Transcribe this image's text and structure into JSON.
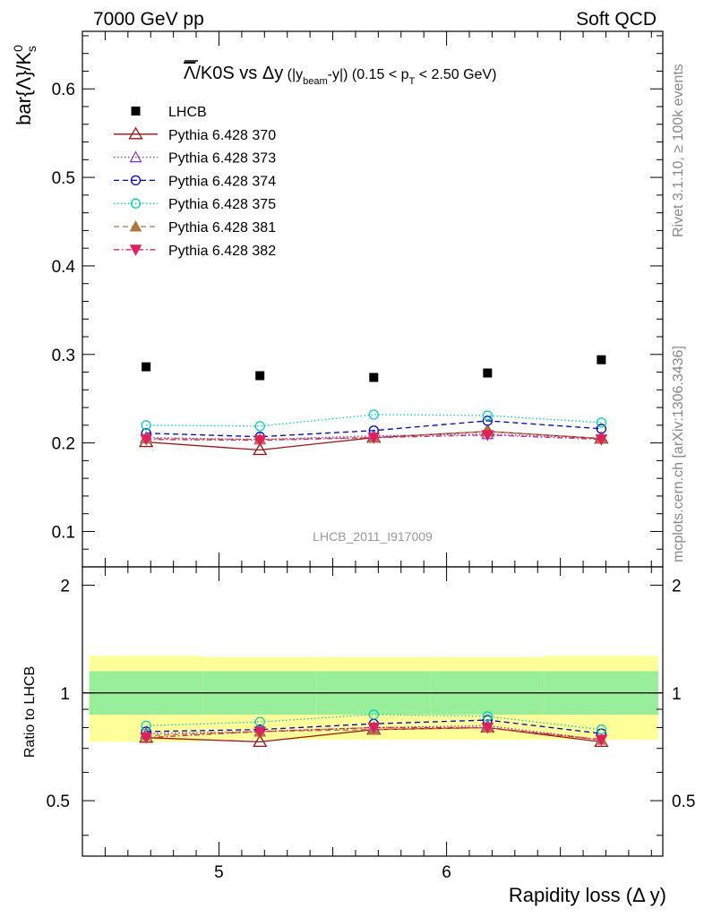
{
  "header": {
    "left": "7000 GeV pp",
    "right": "Soft QCD"
  },
  "side_labels": {
    "top": "Rivet 3.1.10, ≥ 100k events",
    "bottom": "mcplots.cern.ch [arXiv:1306.3436]"
  },
  "watermark": "LHCB_2011_I917009",
  "chart_data": {
    "type": "scatter",
    "title_main": "Λ/K0S vs Δy",
    "title_range": "(|y_beam-y|) (0.15 < p_T < 2.50 GeV)",
    "ylabel": "bar{Λ}/K⁰s",
    "xlabel": "Rapidity loss (Δ y)",
    "ratio_ylabel": "Ratio to LHCB",
    "xlim": [
      4.4,
      6.95
    ],
    "ylim": [
      0.06,
      0.665
    ],
    "ratio_ylim": [
      0.35,
      2.25
    ],
    "x_ticks": [
      5,
      6
    ],
    "y_ticks": [
      0.1,
      0.2,
      0.3,
      0.4,
      0.5,
      0.6
    ],
    "ratio_ticks": [
      0.5,
      1,
      2
    ],
    "bins": [
      [
        4.43,
        4.93
      ],
      [
        4.93,
        5.43
      ],
      [
        5.43,
        5.93
      ],
      [
        5.93,
        6.43
      ],
      [
        6.43,
        6.93
      ]
    ],
    "x": [
      4.68,
      5.18,
      5.68,
      6.18,
      6.68
    ],
    "legend": [
      {
        "label": "LHCB"
      },
      {
        "label": "Pythia 6.428 370"
      },
      {
        "label": "Pythia 6.428 373"
      },
      {
        "label": "Pythia 6.428 374"
      },
      {
        "label": "Pythia 6.428 375"
      },
      {
        "label": "Pythia 6.428 381"
      },
      {
        "label": "Pythia 6.428 382"
      }
    ],
    "data": {
      "name": "LHCB",
      "values": [
        0.286,
        0.276,
        0.274,
        0.279,
        0.294
      ],
      "color": "#000000"
    },
    "series": [
      {
        "name": "Pythia 6.428 370",
        "values": [
          0.201,
          0.192,
          0.206,
          0.213,
          0.205
        ],
        "color": "#a01010",
        "dash": "",
        "marker": "triangle-open"
      },
      {
        "name": "Pythia 6.428 373",
        "values": [
          0.206,
          0.204,
          0.208,
          0.21,
          0.205
        ],
        "color": "#8a2be2",
        "dash": "1.5,2.5",
        "marker": "triangle-open-small"
      },
      {
        "name": "Pythia 6.428 374",
        "values": [
          0.211,
          0.207,
          0.214,
          0.225,
          0.216
        ],
        "color": "#0000cc",
        "dash": "6,4",
        "marker": "circle-open"
      },
      {
        "name": "Pythia 6.428 375",
        "values": [
          0.22,
          0.219,
          0.232,
          0.231,
          0.223
        ],
        "color": "#00d0c0",
        "dash": "1.5,2.5",
        "marker": "circle-open"
      },
      {
        "name": "Pythia 6.428 381",
        "values": [
          0.205,
          0.204,
          0.206,
          0.213,
          0.205
        ],
        "color": "#b07840",
        "dash": "6,4",
        "marker": "triangle-filled"
      },
      {
        "name": "Pythia 6.428 382",
        "values": [
          0.204,
          0.203,
          0.206,
          0.209,
          0.204
        ],
        "color": "#e0205a",
        "dash": "6,3,1.5,3",
        "marker": "triangle-down-filled"
      }
    ],
    "ratio": {
      "data_line": 1,
      "band_green": [
        [
          0.87,
          1.15
        ],
        [
          0.87,
          1.15
        ],
        [
          0.87,
          1.15
        ],
        [
          0.87,
          1.15
        ],
        [
          0.87,
          1.15
        ]
      ],
      "band_yellow": [
        [
          0.73,
          1.27
        ],
        [
          0.74,
          1.26
        ],
        [
          0.74,
          1.26
        ],
        [
          0.74,
          1.26
        ],
        [
          0.74,
          1.27
        ]
      ],
      "series": [
        {
          "name": "Pythia 6.428 370",
          "values": [
            0.75,
            0.73,
            0.79,
            0.8,
            0.73
          ]
        },
        {
          "name": "Pythia 6.428 373",
          "values": [
            0.77,
            0.78,
            0.8,
            0.81,
            0.74
          ]
        },
        {
          "name": "Pythia 6.428 374",
          "values": [
            0.78,
            0.79,
            0.82,
            0.84,
            0.77
          ]
        },
        {
          "name": "Pythia 6.428 375",
          "values": [
            0.81,
            0.83,
            0.87,
            0.86,
            0.79
          ]
        },
        {
          "name": "Pythia 6.428 381",
          "values": [
            0.76,
            0.78,
            0.79,
            0.8,
            0.74
          ]
        },
        {
          "name": "Pythia 6.428 382",
          "values": [
            0.75,
            0.78,
            0.8,
            0.8,
            0.74
          ]
        }
      ]
    }
  }
}
